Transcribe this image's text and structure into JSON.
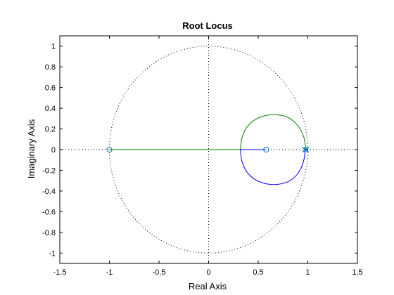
{
  "chart_data": {
    "type": "line",
    "title": "Root Locus",
    "xlabel": "Real Axis",
    "ylabel": "Imaginary Axis",
    "xlim": [
      -1.5,
      1.5
    ],
    "ylim": [
      -1.1,
      1.1
    ],
    "xticks": [
      -1.5,
      -1,
      -0.5,
      0,
      0.5,
      1,
      1.5
    ],
    "xtick_labels": [
      "-1.5",
      "-1",
      "-0.5",
      "0",
      "0.5",
      "1",
      "1.5"
    ],
    "yticks": [
      1,
      0.8,
      0.6,
      0.4,
      0.2,
      0,
      -0.2,
      -0.4,
      -0.6,
      -0.8,
      -1
    ],
    "ytick_labels": [
      "1",
      "0.8",
      "0.6",
      "0.4",
      "0.2",
      "0",
      "-0.2",
      "-0.4",
      "-0.6",
      "-0.8",
      "-1"
    ],
    "grid": false,
    "unit_circle": true,
    "zeros": [
      {
        "x": -1.0,
        "y": 0
      },
      {
        "x": 0.58,
        "y": 0
      }
    ],
    "poles": [
      {
        "x": 0.97,
        "y": 0
      },
      {
        "x": 0.985,
        "y": 0
      }
    ],
    "branches": [
      {
        "color": "#008000",
        "points": [
          [
            0.98,
            0
          ],
          [
            0.96,
            0.12
          ],
          [
            0.9,
            0.23
          ],
          [
            0.81,
            0.305
          ],
          [
            0.7,
            0.335
          ],
          [
            0.58,
            0.33
          ],
          [
            0.47,
            0.29
          ],
          [
            0.385,
            0.215
          ],
          [
            0.335,
            0.11
          ],
          [
            0.32,
            0
          ],
          [
            -1.0,
            0
          ]
        ]
      },
      {
        "color": "#0000ff",
        "points": [
          [
            0.975,
            0
          ],
          [
            0.955,
            -0.12
          ],
          [
            0.9,
            -0.23
          ],
          [
            0.81,
            -0.305
          ],
          [
            0.7,
            -0.335
          ],
          [
            0.58,
            -0.33
          ],
          [
            0.47,
            -0.29
          ],
          [
            0.385,
            -0.215
          ],
          [
            0.335,
            -0.11
          ],
          [
            0.32,
            0
          ],
          [
            0.58,
            0
          ]
        ]
      }
    ],
    "colors": {
      "marker": "#0072bd",
      "axis": "#000000",
      "dotted": "#000000"
    }
  }
}
